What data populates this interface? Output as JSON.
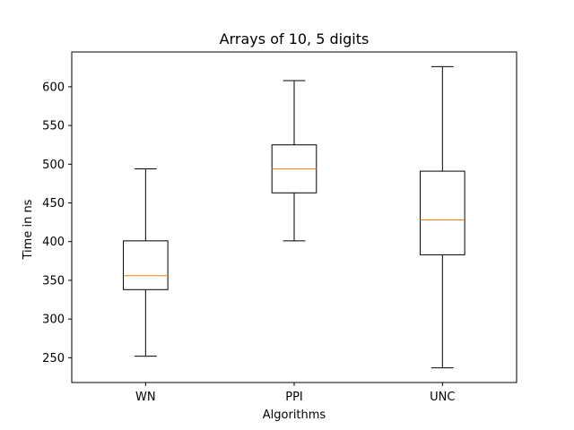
{
  "chart_data": {
    "type": "box",
    "title": "Arrays of 10, 5 digits",
    "xlabel": "Algorithms",
    "ylabel": "Time in ns",
    "categories": [
      "WN",
      "PPI",
      "UNC"
    ],
    "boxes": [
      {
        "name": "WN",
        "whisker_low": 252,
        "q1": 338,
        "median": 356,
        "q3": 401,
        "whisker_high": 494
      },
      {
        "name": "PPI",
        "whisker_low": 401,
        "q1": 463,
        "median": 494,
        "q3": 525,
        "whisker_high": 608
      },
      {
        "name": "UNC",
        "whisker_low": 237,
        "q1": 383,
        "median": 428,
        "q3": 491,
        "whisker_high": 626
      }
    ],
    "ylim": [
      218,
      645
    ],
    "yticks": [
      250,
      300,
      350,
      400,
      450,
      500,
      550,
      600
    ],
    "grid": false,
    "colors": {
      "box": "#000000",
      "median": "#ff7f0e",
      "whisker": "#000000"
    }
  }
}
